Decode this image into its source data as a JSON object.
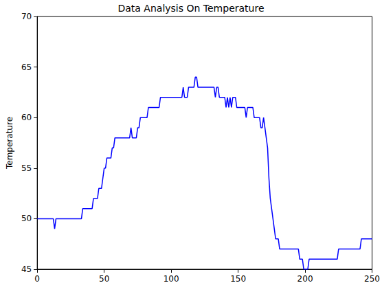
{
  "chart_data": {
    "type": "line",
    "title": "Data Analysis On Temperature",
    "y_label": "Temperature",
    "x": [
      0,
      12,
      13,
      14,
      33,
      34,
      41,
      42,
      45,
      46,
      48,
      49,
      50,
      51,
      52,
      55,
      56,
      57,
      58,
      69,
      70,
      71,
      74,
      75,
      76,
      77,
      82,
      83,
      91,
      92,
      108,
      109,
      110,
      112,
      113,
      117,
      118,
      119,
      120,
      132,
      133,
      134,
      135,
      136,
      140,
      141,
      142,
      143,
      144,
      145,
      146,
      148,
      149,
      155,
      156,
      157,
      161,
      162,
      166,
      167,
      168,
      169,
      170,
      171,
      172,
      173,
      174,
      175,
      176,
      177,
      178,
      180,
      181,
      195,
      196,
      198,
      199,
      202,
      203,
      224,
      225,
      241,
      242,
      250
    ],
    "values": [
      50,
      50,
      49,
      50,
      50,
      51,
      51,
      52,
      52,
      53,
      53,
      54,
      55,
      55,
      56,
      56,
      57,
      57,
      58,
      58,
      59,
      58,
      58,
      59,
      59,
      60,
      60,
      61,
      61,
      62,
      62,
      63,
      62,
      62,
      63,
      63,
      64,
      64,
      63,
      63,
      62,
      63,
      63,
      62,
      62,
      61,
      62,
      61,
      62,
      61,
      62,
      62,
      61,
      61,
      60,
      61,
      61,
      60,
      60,
      59,
      59,
      60,
      59,
      58,
      57,
      54,
      52,
      51,
      50,
      49,
      48,
      48,
      47,
      47,
      46,
      46,
      45,
      45,
      46,
      46,
      47,
      47,
      48,
      48
    ],
    "color": "#0000ff",
    "xlim": [
      0,
      250
    ],
    "xticks": [
      0,
      50,
      100,
      150,
      200,
      250
    ],
    "ylim": [
      45,
      70
    ],
    "yticks": [
      45,
      50,
      55,
      60,
      65,
      70
    ],
    "grid": false
  }
}
